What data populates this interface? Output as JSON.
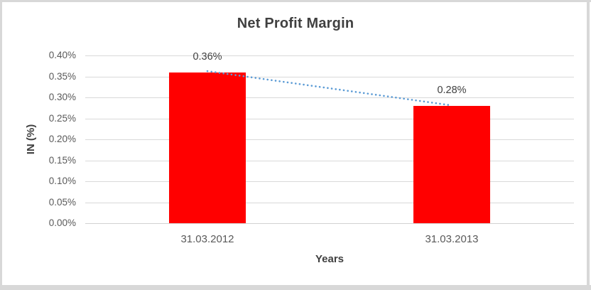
{
  "chart_data": {
    "type": "bar",
    "title": "Net Profit Margin",
    "xlabel": "Years",
    "ylabel": "IN (%)",
    "categories": [
      "31.03.2012",
      "31.03.2013"
    ],
    "values": [
      0.36,
      0.28
    ],
    "data_labels": [
      "0.36%",
      "0.28%"
    ],
    "yticks": [
      "0.00%",
      "0.05%",
      "0.10%",
      "0.15%",
      "0.20%",
      "0.25%",
      "0.30%",
      "0.35%",
      "0.40%"
    ],
    "ytick_values": [
      0.0,
      0.05,
      0.1,
      0.15,
      0.2,
      0.25,
      0.3,
      0.35,
      0.4
    ],
    "ylim": [
      0,
      0.4
    ],
    "grid": true,
    "legend": "none",
    "trendline": {
      "type": "linear",
      "style": "dotted",
      "from_label": "0.36%",
      "to_label": "0.28%"
    },
    "colors": {
      "bar": "#FF0000",
      "trendline": "#5B9BD5",
      "gridline": "#D9D9D9",
      "axis_line": "#D2D2D2",
      "title_text": "#404040",
      "axis_title_text": "#404040",
      "tick_text": "#595959",
      "data_label_text": "#404040",
      "background": "#FFFFFF",
      "border": "#D8D8D8"
    }
  }
}
